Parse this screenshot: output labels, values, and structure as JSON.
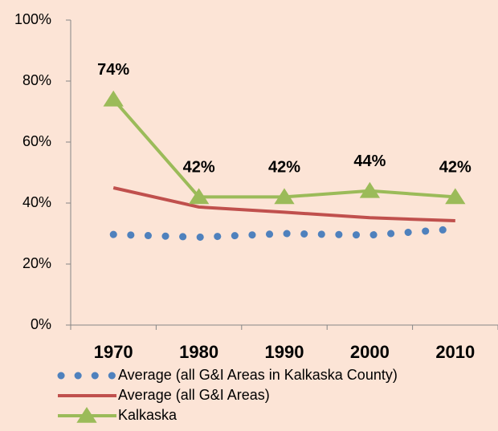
{
  "chart_data": {
    "type": "line",
    "categories": [
      "1970",
      "1980",
      "1990",
      "2000",
      "2010"
    ],
    "ylim": [
      0,
      100
    ],
    "yticks": [
      {
        "value": 0,
        "label": "0%"
      },
      {
        "value": 20,
        "label": "20%"
      },
      {
        "value": 40,
        "label": "40%"
      },
      {
        "value": 60,
        "label": "60%"
      },
      {
        "value": 80,
        "label": "80%"
      },
      {
        "value": 100,
        "label": "100%"
      }
    ],
    "series": [
      {
        "name": "Average (all G&I Areas in Kalkaska County)",
        "color": "#4f81bd",
        "style": "dotted",
        "values": [
          29.7,
          28.8,
          30,
          29.5,
          31.5
        ]
      },
      {
        "name": "Average (all G&I Areas)",
        "color": "#c0504d",
        "style": "solid",
        "values": [
          45,
          38.7,
          37,
          35.2,
          34.2
        ]
      },
      {
        "name": "Kalkaska",
        "color": "#9bbb59",
        "style": "solid",
        "marker": "triangle",
        "values": [
          74,
          42,
          42,
          44,
          42
        ],
        "value_labels": [
          "74%",
          "42%",
          "42%",
          "44%",
          "42%"
        ]
      }
    ]
  }
}
